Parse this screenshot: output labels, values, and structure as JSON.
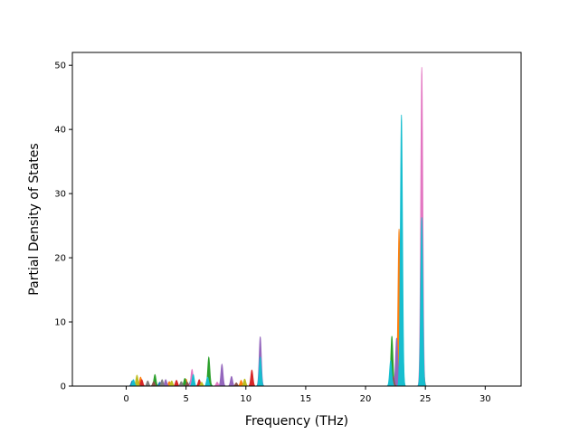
{
  "chart_data": {
    "type": "area",
    "title": "",
    "xlabel": "Frequency (THz)",
    "ylabel": "Partial Density of States",
    "xlim": [
      -4.5,
      33.0
    ],
    "ylim": [
      0,
      52
    ],
    "xticks": [
      0,
      5,
      10,
      15,
      20,
      25,
      30
    ],
    "yticks": [
      0,
      10,
      20,
      30,
      40,
      50
    ],
    "grid": false,
    "legend": "none",
    "x_range": [
      -3.0,
      31.2
    ],
    "series": [
      {
        "color": "#1f77b4",
        "peaks": [
          [
            0.5,
            0.8
          ],
          [
            2.8,
            0.6
          ],
          [
            5.4,
            0.9
          ],
          [
            7.0,
            0.6
          ],
          [
            11.2,
            3.2
          ],
          [
            22.2,
            2.5
          ],
          [
            23.0,
            5.0
          ],
          [
            24.7,
            2.0
          ]
        ]
      },
      {
        "color": "#ff7f0e",
        "peaks": [
          [
            1.2,
            1.4
          ],
          [
            3.6,
            0.7
          ],
          [
            5.0,
            1.1
          ],
          [
            9.6,
            0.9
          ],
          [
            22.8,
            24.5
          ],
          [
            24.7,
            1.5
          ]
        ]
      },
      {
        "color": "#2ca02c",
        "peaks": [
          [
            2.4,
            1.8
          ],
          [
            4.9,
            1.2
          ],
          [
            6.9,
            4.5
          ],
          [
            11.2,
            4.5
          ],
          [
            22.2,
            7.8
          ],
          [
            23.0,
            26.5
          ]
        ]
      },
      {
        "color": "#d62728",
        "peaks": [
          [
            1.3,
            1.0
          ],
          [
            4.2,
            0.9
          ],
          [
            6.1,
            1.0
          ],
          [
            10.5,
            2.5
          ],
          [
            22.7,
            3.0
          ]
        ]
      },
      {
        "color": "#9467bd",
        "peaks": [
          [
            3.3,
            1.0
          ],
          [
            8.0,
            3.4
          ],
          [
            8.8,
            1.5
          ],
          [
            11.2,
            7.7
          ],
          [
            22.6,
            7.5
          ],
          [
            24.7,
            18.5
          ]
        ]
      },
      {
        "color": "#8c564b",
        "peaks": [
          [
            1.0,
            0.5
          ],
          [
            2.3,
            0.7
          ],
          [
            5.1,
            0.6
          ],
          [
            9.2,
            0.5
          ],
          [
            22.3,
            1.5
          ]
        ]
      },
      {
        "color": "#e377c2",
        "peaks": [
          [
            5.5,
            2.6
          ],
          [
            7.6,
            0.6
          ],
          [
            24.7,
            49.7
          ]
        ]
      },
      {
        "color": "#7f7f7f",
        "peaks": [
          [
            1.8,
            0.8
          ],
          [
            3.0,
            1.0
          ],
          [
            4.6,
            0.7
          ],
          [
            22.2,
            1.2
          ],
          [
            24.8,
            3.5
          ]
        ]
      },
      {
        "color": "#bcbd22",
        "peaks": [
          [
            0.9,
            1.7
          ],
          [
            3.8,
            0.8
          ],
          [
            6.3,
            0.6
          ],
          [
            9.9,
            1.1
          ],
          [
            22.9,
            2.0
          ]
        ]
      },
      {
        "color": "#17becf",
        "peaks": [
          [
            0.6,
            1.0
          ],
          [
            5.6,
            1.8
          ],
          [
            6.8,
            1.4
          ],
          [
            11.2,
            4.5
          ],
          [
            22.1,
            4.0
          ],
          [
            23.0,
            42.3
          ],
          [
            24.7,
            26.3
          ]
        ]
      }
    ]
  }
}
